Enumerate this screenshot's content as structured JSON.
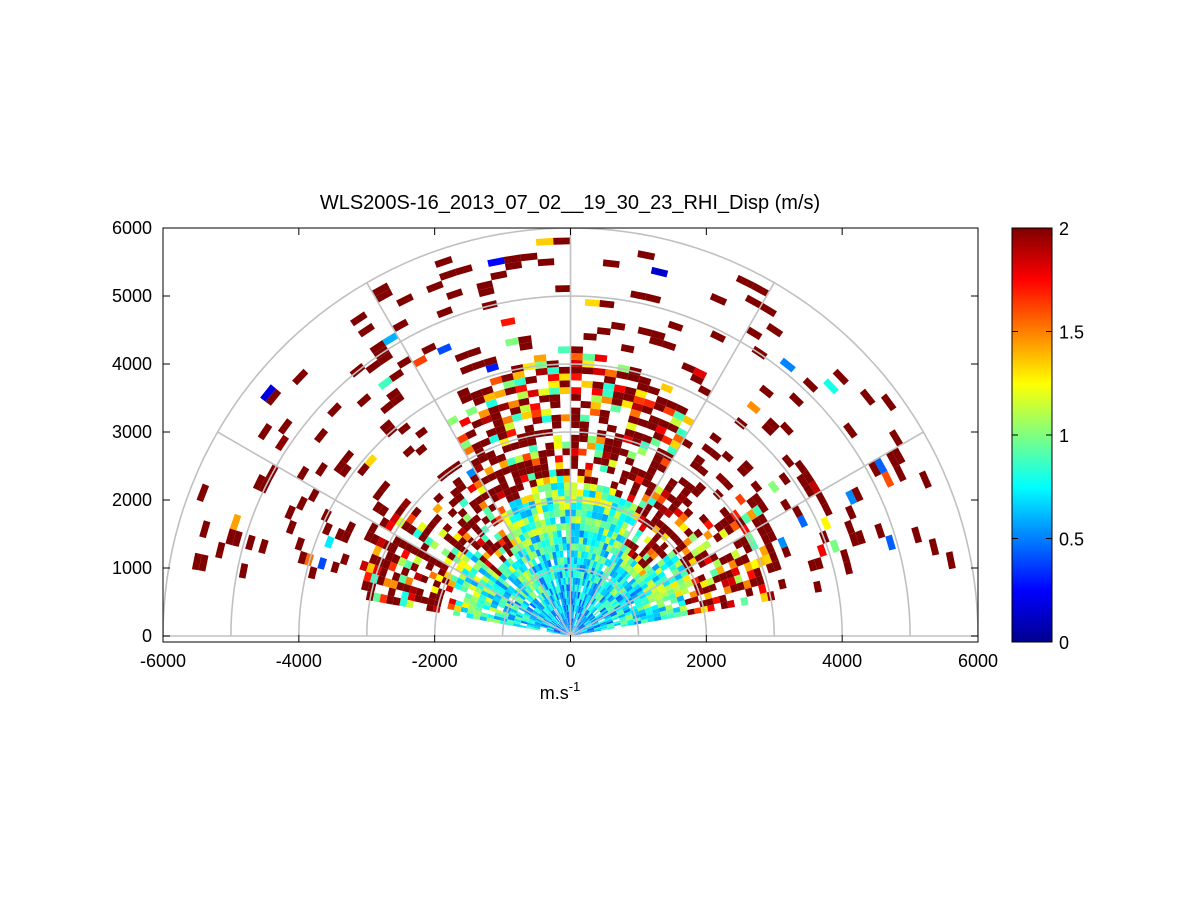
{
  "chart_data": {
    "type": "heatmap",
    "subtype": "polar-rhi-sector",
    "title": "WLS200S-16_2013_07_02__19_30_23_RHI_Disp (m/s)",
    "xlabel": "m.s",
    "xlabel_superscript": "-1",
    "ylabel": "",
    "xlim": [
      -6000,
      6000
    ],
    "ylim": [
      0,
      6000
    ],
    "xticks": [
      "-6000",
      "-4000",
      "-2000",
      "0",
      "2000",
      "4000",
      "6000"
    ],
    "yticks": [
      "0",
      "1000",
      "2000",
      "3000",
      "4000",
      "5000",
      "6000"
    ],
    "polar_grid": {
      "ring_radii": [
        1000,
        2000,
        3000,
        4000,
        5000,
        6000
      ],
      "spoke_angles_deg": [
        0,
        30,
        60,
        90,
        120,
        150,
        180
      ],
      "color": "#c0c0c0"
    },
    "scan_sector_deg": [
      10,
      170
    ],
    "colormap": "jet",
    "colorbar": {
      "min": 0,
      "max": 2,
      "ticks": [
        "0",
        "0.5",
        "1",
        "1.5",
        "2"
      ]
    }
  }
}
